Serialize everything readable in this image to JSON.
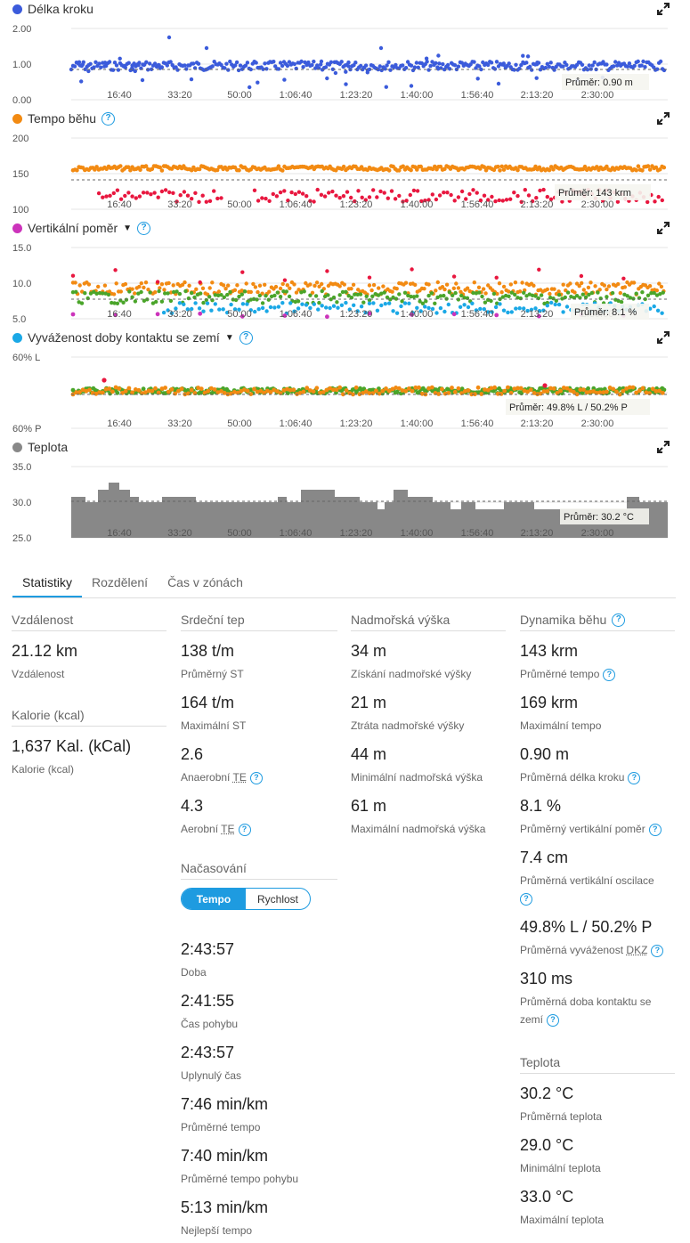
{
  "charts": [
    {
      "title": "Délka kroku",
      "dot_color": "#3b5bdb",
      "help": false,
      "caret": false,
      "y_ticks": [
        "2.00",
        "1.00",
        "0.00"
      ],
      "x_ticks": [
        "16:40",
        "33:20",
        "50:00",
        "1:06:40",
        "1:23:20",
        "1:40:00",
        "1:56:40",
        "2:13:20",
        "2:30:00"
      ],
      "avg_label": "Průměr:",
      "avg_value": "0.90 m"
    },
    {
      "title": "Tempo běhu",
      "dot_color": "#f28a12",
      "help": true,
      "caret": false,
      "y_ticks": [
        "200",
        "150",
        "100"
      ],
      "x_ticks": [
        "16:40",
        "33:20",
        "50:00",
        "1:06:40",
        "1:23:20",
        "1:40:00",
        "1:56:40",
        "2:13:20",
        "2:30:00"
      ],
      "avg_label": "Průměr:",
      "avg_value": "143 krm"
    },
    {
      "title": "Vertikální poměr",
      "dot_color": "#cc33bb",
      "help": true,
      "caret": true,
      "y_ticks": [
        "15.0",
        "10.0",
        "5.0"
      ],
      "x_ticks": [
        "16:40",
        "33:20",
        "50:00",
        "1:06:40",
        "1:23:20",
        "1:40:00",
        "1:56:40",
        "2:13:20",
        "2:30:00"
      ],
      "avg_label": "Průměr:",
      "avg_value": "8.1 %"
    },
    {
      "title": "Vyváženost doby kontaktu se zemí",
      "dot_color": "#1aa8e6",
      "help": true,
      "caret": true,
      "y_ticks": [
        "60% L",
        "",
        "60% P"
      ],
      "x_ticks": [
        "16:40",
        "33:20",
        "50:00",
        "1:06:40",
        "1:23:20",
        "1:40:00",
        "1:56:40",
        "2:13:20",
        "2:30:00"
      ],
      "avg_label": "Průměr:",
      "avg_value": "49.8% L  /  50.2% P"
    },
    {
      "title": "Teplota",
      "dot_color": "#888888",
      "help": false,
      "caret": false,
      "y_ticks": [
        "35.0",
        "30.0",
        "25.0"
      ],
      "x_ticks": [
        "16:40",
        "33:20",
        "50:00",
        "1:06:40",
        "1:23:20",
        "1:40:00",
        "1:56:40",
        "2:13:20",
        "2:30:00"
      ],
      "avg_label": "Průměr:",
      "avg_value": "30.2 °C"
    }
  ],
  "tabs": [
    "Statistiky",
    "Rozdělení",
    "Čas v zónách"
  ],
  "distance": {
    "heading": "Vzdálenost",
    "value": "21.12 km",
    "label": "Vzdálenost"
  },
  "calories": {
    "heading": "Kalorie (kcal)",
    "value": "1,637 Kal. (kCal)",
    "label": "Kalorie (kcal)"
  },
  "heart": {
    "heading": "Srdeční tep",
    "stats": [
      {
        "value": "138 t/m",
        "label": "Průměrný ST"
      },
      {
        "value": "164 t/m",
        "label": "Maximální ST"
      },
      {
        "value": "2.6",
        "label": "Anaerobní",
        "abbr": "TE"
      },
      {
        "value": "4.3",
        "label": "Aerobní",
        "abbr": "TE"
      }
    ]
  },
  "timing": {
    "heading": "Načasování",
    "toggle": [
      "Tempo",
      "Rychlost"
    ],
    "stats": [
      {
        "value": "2:43:57",
        "label": "Doba"
      },
      {
        "value": "2:41:55",
        "label": "Čas pohybu"
      },
      {
        "value": "2:43:57",
        "label": "Uplynulý čas"
      },
      {
        "value": "7:46 min/km",
        "label": "Průměrné tempo"
      },
      {
        "value": "7:40 min/km",
        "label": "Průměrné tempo pohybu"
      },
      {
        "value": "5:13 min/km",
        "label": "Nejlepší tempo"
      }
    ]
  },
  "elevation": {
    "heading": "Nadmořská výška",
    "stats": [
      {
        "value": "34 m",
        "label": "Získání nadmořské výšky"
      },
      {
        "value": "21 m",
        "label": "Ztráta nadmořské výšky"
      },
      {
        "value": "44 m",
        "label": "Minimální nadmořská výška"
      },
      {
        "value": "61 m",
        "label": "Maximální nadmořská výška"
      }
    ]
  },
  "dynamics": {
    "heading": "Dynamika běhu",
    "stats": [
      {
        "value": "143 krm",
        "label": "Průměrné tempo"
      },
      {
        "value": "169 krm",
        "label": "Maximální tempo"
      },
      {
        "value": "0.90 m",
        "label": "Průměrná délka kroku"
      },
      {
        "value": "8.1 %",
        "label": "Průměrný vertikální poměr"
      },
      {
        "value": "7.4 cm",
        "label": "Průměrná vertikální oscilace"
      },
      {
        "value": "49.8% L / 50.2% P",
        "label": "Průměrná vyváženost",
        "abbr": "DKZ"
      },
      {
        "value": "310 ms",
        "label": "Průměrná doba kontaktu se zemí"
      }
    ]
  },
  "temperature": {
    "heading": "Teplota",
    "stats": [
      {
        "value": "30.2 °C",
        "label": "Průměrná teplota"
      },
      {
        "value": "29.0 °C",
        "label": "Minimální teplota"
      },
      {
        "value": "33.0 °C",
        "label": "Maximální teplota"
      }
    ]
  },
  "chart_data": [
    {
      "type": "scatter",
      "title": "Délka kroku",
      "ylim": [
        0,
        2
      ],
      "average": 0.9,
      "series": [
        {
          "name": "Délka kroku",
          "values_approx": "mostly 0.8–1.05"
        }
      ]
    },
    {
      "type": "scatter",
      "title": "Tempo běhu",
      "ylim": [
        100,
        200
      ],
      "average": 143,
      "series": [
        {
          "name": "orange",
          "values_approx": "~155–160"
        },
        {
          "name": "red",
          "values_approx": "~115–135"
        }
      ]
    },
    {
      "type": "scatter",
      "title": "Vertikální poměr",
      "ylim": [
        5,
        15
      ],
      "average": 8.1
    },
    {
      "type": "scatter",
      "title": "Vyváženost doby kontaktu se zemí",
      "average": "49.8% L / 50.2% P"
    },
    {
      "type": "area",
      "title": "Teplota",
      "ylim": [
        25,
        35
      ],
      "average": 30.2
    }
  ]
}
